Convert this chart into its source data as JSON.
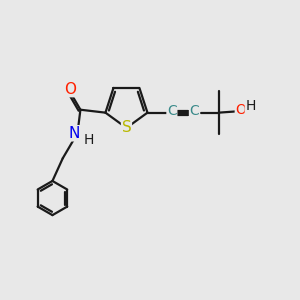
{
  "bg_color": "#e8e8e8",
  "bond_color": "#1a1a1a",
  "bond_width": 1.6,
  "font_size": 10,
  "atom_colors": {
    "S": "#b8b800",
    "O": "#ff2000",
    "N": "#0000ee",
    "H": "#1a1a1a",
    "C": "#3a8a8a"
  }
}
